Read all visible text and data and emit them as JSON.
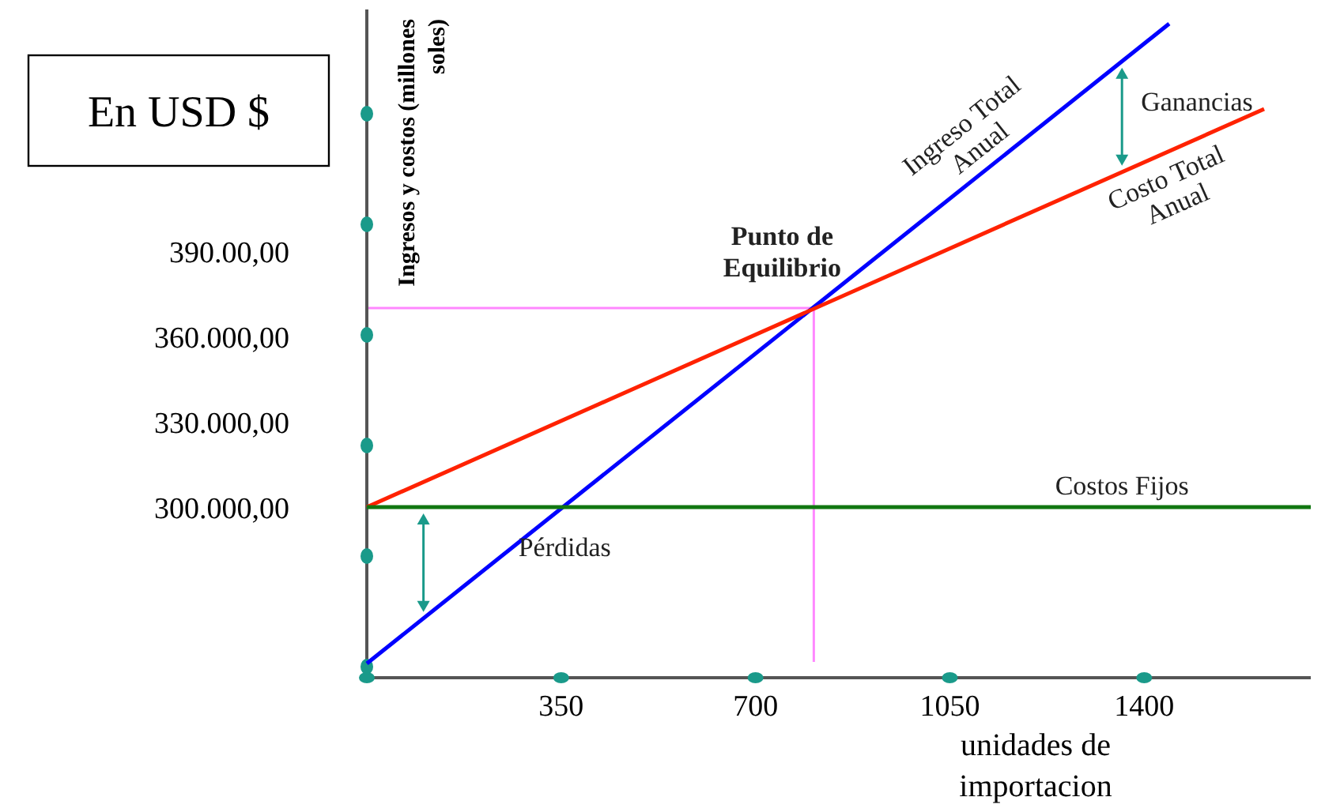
{
  "chart_data": {
    "type": "line",
    "xlabel": "unidades de importacion",
    "ylabel": "Ingresos y costos (millones soles)",
    "xlim": [
      0,
      1700
    ],
    "xticks": [
      {
        "value": 0,
        "label": null
      },
      350,
      700,
      1050,
      1400
    ],
    "ylim": [
      240000,
      475000
    ],
    "yticks": [
      {
        "value": 300000,
        "label": "300.000,00"
      },
      {
        "value": 330000,
        "label": "330.000,00"
      },
      {
        "value": 360000,
        "label": "360.000,00"
      },
      {
        "value": 390000,
        "label": "390.00,00"
      }
    ],
    "series": [
      {
        "name": "Ingreso Total Anual",
        "color": "#0000ff",
        "x": [
          0,
          1445
        ],
        "values": [
          245000,
          470000
        ]
      },
      {
        "name": "Costo Total Anual",
        "color": "#ff2200",
        "x": [
          0,
          1616
        ],
        "values": [
          300000,
          440000
        ]
      },
      {
        "name": "Costos Fijos",
        "color": "#117711",
        "x": [
          0,
          1700
        ],
        "values": [
          300000,
          300000
        ]
      }
    ],
    "ref_lines": [
      {
        "axis": "x",
        "value": 805,
        "color": "#ff88ff"
      },
      {
        "axis": "y",
        "value": 370000,
        "color": "#ff88ff"
      }
    ],
    "annotations": [
      "En USD $",
      {
        "text": "Punto de Equilibrio",
        "x": 805,
        "y": 370000
      },
      "Ganancias",
      "Pérdidas"
    ],
    "grid": false,
    "marker": "none",
    "line_style": "solid"
  }
}
